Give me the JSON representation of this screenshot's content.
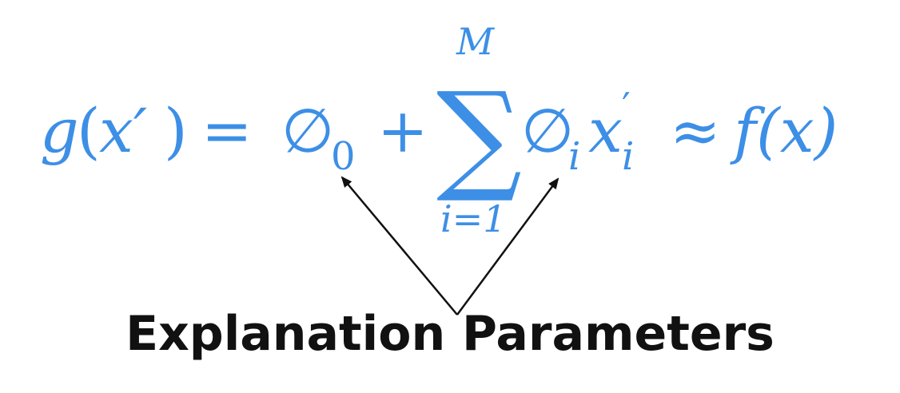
{
  "equation": {
    "lhs_func": "g",
    "lhs_open": "(",
    "lhs_var": "x′",
    "lhs_close": ")",
    "equals": "=",
    "phi0_symbol": "∅",
    "phi0_sub": "0",
    "plus": "+",
    "sum_symbol": "∑",
    "sum_upper": "M",
    "sum_lower": "i=1",
    "phi_i_symbol": "∅",
    "phi_i_sub": "i",
    "x_i_symbol": "x",
    "x_i_sup": "′",
    "x_i_sub": "i",
    "approx": "≈",
    "rhs": "f(x)"
  },
  "annotation": {
    "label": "Explanation Parameters"
  },
  "colors": {
    "equation": "#3d8fe6",
    "arrows": "#111111",
    "label": "#111111"
  }
}
